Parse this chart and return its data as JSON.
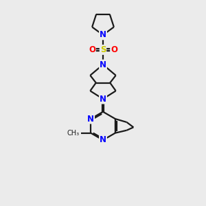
{
  "bg_color": "#ebebeb",
  "bond_color": "#1a1a1a",
  "N_color": "#0000ff",
  "S_color": "#cccc00",
  "O_color": "#ff0000",
  "line_width": 1.6,
  "font_size": 8.5,
  "xlim": [
    0,
    10
  ],
  "ylim": [
    0,
    15
  ]
}
